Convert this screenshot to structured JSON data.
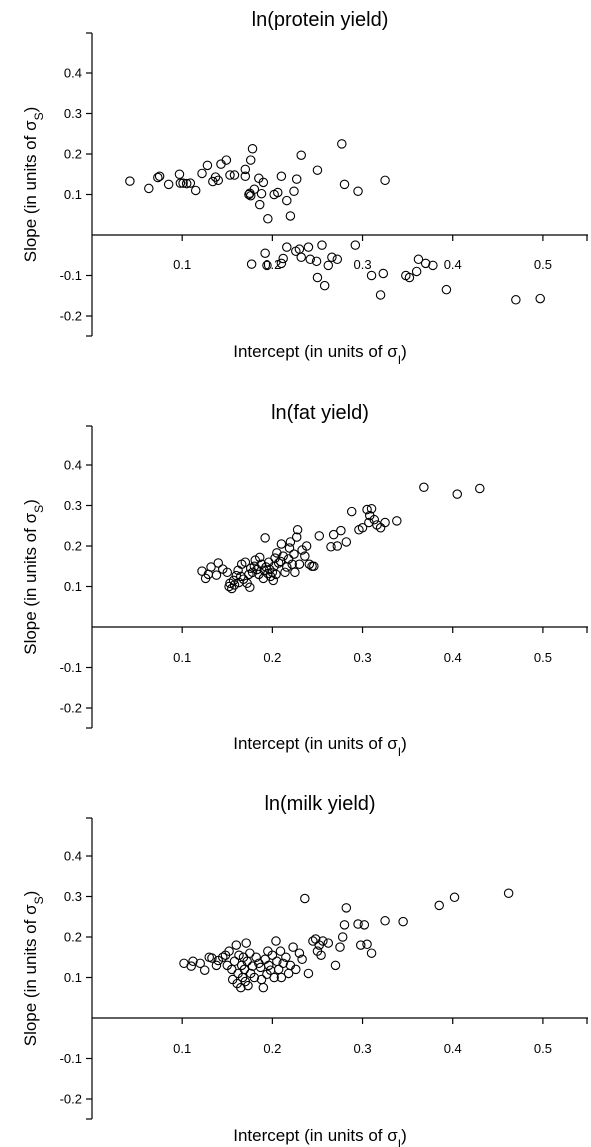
{
  "chart_data": [
    {
      "type": "scatter",
      "title": "ln(protein yield)",
      "xlabel": "Intercept (in units of σ_I)",
      "ylabel": "Slope (in units of σ_S)",
      "xlim": [
        0.0,
        0.55
      ],
      "ylim": [
        -0.25,
        0.5
      ],
      "xticks": [
        "0.1",
        "0.2",
        "0.3",
        "0.4",
        "0.5"
      ],
      "yticks": [
        "-0.2",
        "-0.1",
        "0.1",
        "0.2",
        "0.3",
        "0.4"
      ],
      "grid": false,
      "points": [
        [
          0.042,
          0.133
        ],
        [
          0.063,
          0.115
        ],
        [
          0.073,
          0.142
        ],
        [
          0.075,
          0.145
        ],
        [
          0.085,
          0.125
        ],
        [
          0.097,
          0.15
        ],
        [
          0.098,
          0.128
        ],
        [
          0.101,
          0.128
        ],
        [
          0.105,
          0.127
        ],
        [
          0.109,
          0.128
        ],
        [
          0.115,
          0.11
        ],
        [
          0.122,
          0.152
        ],
        [
          0.128,
          0.172
        ],
        [
          0.134,
          0.132
        ],
        [
          0.137,
          0.143
        ],
        [
          0.14,
          0.135
        ],
        [
          0.143,
          0.175
        ],
        [
          0.149,
          0.185
        ],
        [
          0.153,
          0.148
        ],
        [
          0.158,
          0.148
        ],
        [
          0.17,
          0.145
        ],
        [
          0.17,
          0.162
        ],
        [
          0.174,
          0.1
        ],
        [
          0.175,
          0.103
        ],
        [
          0.176,
          0.097
        ],
        [
          0.176,
          0.185
        ],
        [
          0.178,
          0.213
        ],
        [
          0.18,
          0.113
        ],
        [
          0.185,
          0.14
        ],
        [
          0.186,
          0.075
        ],
        [
          0.188,
          0.102
        ],
        [
          0.19,
          0.13
        ],
        [
          0.195,
          0.04
        ],
        [
          0.202,
          0.1
        ],
        [
          0.206,
          0.105
        ],
        [
          0.21,
          0.145
        ],
        [
          0.216,
          0.085
        ],
        [
          0.22,
          0.047
        ],
        [
          0.224,
          0.108
        ],
        [
          0.227,
          0.138
        ],
        [
          0.232,
          0.197
        ],
        [
          0.25,
          0.16
        ],
        [
          0.277,
          0.225
        ],
        [
          0.28,
          0.125
        ],
        [
          0.295,
          0.108
        ],
        [
          0.325,
          0.135
        ],
        [
          0.177,
          -0.072
        ],
        [
          0.192,
          -0.045
        ],
        [
          0.194,
          -0.075
        ],
        [
          0.21,
          -0.07
        ],
        [
          0.212,
          -0.058
        ],
        [
          0.216,
          -0.03
        ],
        [
          0.226,
          -0.04
        ],
        [
          0.23,
          -0.035
        ],
        [
          0.232,
          -0.055
        ],
        [
          0.24,
          -0.03
        ],
        [
          0.242,
          -0.06
        ],
        [
          0.249,
          -0.065
        ],
        [
          0.25,
          -0.105
        ],
        [
          0.255,
          -0.025
        ],
        [
          0.258,
          -0.125
        ],
        [
          0.262,
          -0.075
        ],
        [
          0.266,
          -0.055
        ],
        [
          0.272,
          -0.06
        ],
        [
          0.292,
          -0.025
        ],
        [
          0.31,
          -0.1
        ],
        [
          0.32,
          -0.148
        ],
        [
          0.323,
          -0.095
        ],
        [
          0.348,
          -0.1
        ],
        [
          0.352,
          -0.105
        ],
        [
          0.36,
          -0.09
        ],
        [
          0.362,
          -0.06
        ],
        [
          0.37,
          -0.07
        ],
        [
          0.378,
          -0.075
        ],
        [
          0.393,
          -0.135
        ],
        [
          0.47,
          -0.16
        ],
        [
          0.497,
          -0.157
        ]
      ]
    },
    {
      "type": "scatter",
      "title": "ln(fat yield)",
      "xlabel": "Intercept (in units of σ_I)",
      "ylabel": "Slope (in units of σ_S)",
      "xlim": [
        0.0,
        0.55
      ],
      "ylim": [
        -0.25,
        0.5
      ],
      "xticks": [
        "0.1",
        "0.2",
        "0.3",
        "0.4",
        "0.5"
      ],
      "yticks": [
        "-0.2",
        "-0.1",
        "0.1",
        "0.2",
        "0.3",
        "0.4"
      ],
      "grid": false,
      "points": [
        [
          0.122,
          0.138
        ],
        [
          0.126,
          0.12
        ],
        [
          0.129,
          0.13
        ],
        [
          0.132,
          0.148
        ],
        [
          0.138,
          0.128
        ],
        [
          0.14,
          0.158
        ],
        [
          0.145,
          0.143
        ],
        [
          0.15,
          0.135
        ],
        [
          0.152,
          0.1
        ],
        [
          0.153,
          0.108
        ],
        [
          0.155,
          0.095
        ],
        [
          0.157,
          0.115
        ],
        [
          0.158,
          0.104
        ],
        [
          0.16,
          0.127
        ],
        [
          0.162,
          0.14
        ],
        [
          0.163,
          0.11
        ],
        [
          0.165,
          0.125
        ],
        [
          0.166,
          0.155
        ],
        [
          0.168,
          0.118
        ],
        [
          0.17,
          0.16
        ],
        [
          0.172,
          0.108
        ],
        [
          0.174,
          0.13
        ],
        [
          0.175,
          0.098
        ],
        [
          0.176,
          0.145
        ],
        [
          0.178,
          0.135
        ],
        [
          0.18,
          0.15
        ],
        [
          0.181,
          0.165
        ],
        [
          0.183,
          0.142
        ],
        [
          0.185,
          0.13
        ],
        [
          0.186,
          0.172
        ],
        [
          0.188,
          0.155
        ],
        [
          0.19,
          0.12
        ],
        [
          0.191,
          0.14
        ],
        [
          0.192,
          0.22
        ],
        [
          0.193,
          0.148
        ],
        [
          0.195,
          0.132
        ],
        [
          0.196,
          0.16
        ],
        [
          0.197,
          0.142
        ],
        [
          0.198,
          0.125
        ],
        [
          0.2,
          0.135
        ],
        [
          0.201,
          0.115
        ],
        [
          0.202,
          0.15
        ],
        [
          0.203,
          0.17
        ],
        [
          0.204,
          0.13
        ],
        [
          0.205,
          0.183
        ],
        [
          0.207,
          0.158
        ],
        [
          0.209,
          0.162
        ],
        [
          0.21,
          0.205
        ],
        [
          0.212,
          0.175
        ],
        [
          0.214,
          0.135
        ],
        [
          0.216,
          0.148
        ],
        [
          0.218,
          0.168
        ],
        [
          0.219,
          0.195
        ],
        [
          0.22,
          0.21
        ],
        [
          0.222,
          0.155
        ],
        [
          0.224,
          0.18
        ],
        [
          0.225,
          0.135
        ],
        [
          0.227,
          0.222
        ],
        [
          0.228,
          0.24
        ],
        [
          0.23,
          0.155
        ],
        [
          0.233,
          0.19
        ],
        [
          0.236,
          0.175
        ],
        [
          0.238,
          0.2
        ],
        [
          0.241,
          0.155
        ],
        [
          0.244,
          0.15
        ],
        [
          0.246,
          0.15
        ],
        [
          0.252,
          0.225
        ],
        [
          0.265,
          0.198
        ],
        [
          0.268,
          0.228
        ],
        [
          0.272,
          0.2
        ],
        [
          0.276,
          0.238
        ],
        [
          0.282,
          0.21
        ],
        [
          0.288,
          0.285
        ],
        [
          0.296,
          0.24
        ],
        [
          0.3,
          0.245
        ],
        [
          0.305,
          0.29
        ],
        [
          0.307,
          0.258
        ],
        [
          0.308,
          0.275
        ],
        [
          0.31,
          0.292
        ],
        [
          0.313,
          0.265
        ],
        [
          0.316,
          0.252
        ],
        [
          0.32,
          0.245
        ],
        [
          0.325,
          0.258
        ],
        [
          0.338,
          0.262
        ],
        [
          0.368,
          0.345
        ],
        [
          0.405,
          0.328
        ],
        [
          0.43,
          0.342
        ]
      ]
    },
    {
      "type": "scatter",
      "title": "ln(milk yield)",
      "xlabel": "Intercept (in units of σ_I)",
      "ylabel": "Slope (in units of σ_S)",
      "xlim": [
        0.0,
        0.55
      ],
      "ylim": [
        -0.25,
        0.5
      ],
      "xticks": [
        "0.1",
        "0.2",
        "0.3",
        "0.4",
        "0.5"
      ],
      "yticks": [
        "-0.2",
        "-0.1",
        "0.1",
        "0.2",
        "0.3",
        "0.4"
      ],
      "grid": false,
      "points": [
        [
          0.102,
          0.135
        ],
        [
          0.11,
          0.128
        ],
        [
          0.112,
          0.14
        ],
        [
          0.12,
          0.135
        ],
        [
          0.125,
          0.118
        ],
        [
          0.13,
          0.15
        ],
        [
          0.133,
          0.148
        ],
        [
          0.138,
          0.13
        ],
        [
          0.14,
          0.142
        ],
        [
          0.145,
          0.15
        ],
        [
          0.148,
          0.155
        ],
        [
          0.15,
          0.13
        ],
        [
          0.152,
          0.165
        ],
        [
          0.155,
          0.12
        ],
        [
          0.156,
          0.095
        ],
        [
          0.158,
          0.14
        ],
        [
          0.16,
          0.18
        ],
        [
          0.161,
          0.085
        ],
        [
          0.162,
          0.11
        ],
        [
          0.163,
          0.155
        ],
        [
          0.165,
          0.075
        ],
        [
          0.166,
          0.13
        ],
        [
          0.167,
          0.1
        ],
        [
          0.168,
          0.15
        ],
        [
          0.169,
          0.12
        ],
        [
          0.17,
          0.09
        ],
        [
          0.171,
          0.185
        ],
        [
          0.172,
          0.14
        ],
        [
          0.173,
          0.08
        ],
        [
          0.175,
          0.16
        ],
        [
          0.176,
          0.11
        ],
        [
          0.178,
          0.128
        ],
        [
          0.18,
          0.1
        ],
        [
          0.182,
          0.15
        ],
        [
          0.185,
          0.135
        ],
        [
          0.187,
          0.125
        ],
        [
          0.188,
          0.095
        ],
        [
          0.19,
          0.075
        ],
        [
          0.192,
          0.145
        ],
        [
          0.194,
          0.108
        ],
        [
          0.195,
          0.165
        ],
        [
          0.196,
          0.13
        ],
        [
          0.198,
          0.118
        ],
        [
          0.2,
          0.155
        ],
        [
          0.202,
          0.1
        ],
        [
          0.204,
          0.19
        ],
        [
          0.205,
          0.14
        ],
        [
          0.207,
          0.12
        ],
        [
          0.209,
          0.165
        ],
        [
          0.21,
          0.1
        ],
        [
          0.212,
          0.135
        ],
        [
          0.215,
          0.15
        ],
        [
          0.218,
          0.11
        ],
        [
          0.22,
          0.13
        ],
        [
          0.223,
          0.175
        ],
        [
          0.226,
          0.12
        ],
        [
          0.23,
          0.16
        ],
        [
          0.233,
          0.145
        ],
        [
          0.236,
          0.295
        ],
        [
          0.24,
          0.11
        ],
        [
          0.245,
          0.19
        ],
        [
          0.248,
          0.195
        ],
        [
          0.25,
          0.165
        ],
        [
          0.252,
          0.18
        ],
        [
          0.254,
          0.155
        ],
        [
          0.256,
          0.19
        ],
        [
          0.262,
          0.185
        ],
        [
          0.27,
          0.13
        ],
        [
          0.275,
          0.175
        ],
        [
          0.278,
          0.2
        ],
        [
          0.28,
          0.23
        ],
        [
          0.282,
          0.272
        ],
        [
          0.295,
          0.232
        ],
        [
          0.298,
          0.18
        ],
        [
          0.302,
          0.23
        ],
        [
          0.305,
          0.182
        ],
        [
          0.31,
          0.16
        ],
        [
          0.325,
          0.24
        ],
        [
          0.345,
          0.238
        ],
        [
          0.385,
          0.278
        ],
        [
          0.402,
          0.298
        ],
        [
          0.462,
          0.308
        ]
      ]
    }
  ]
}
